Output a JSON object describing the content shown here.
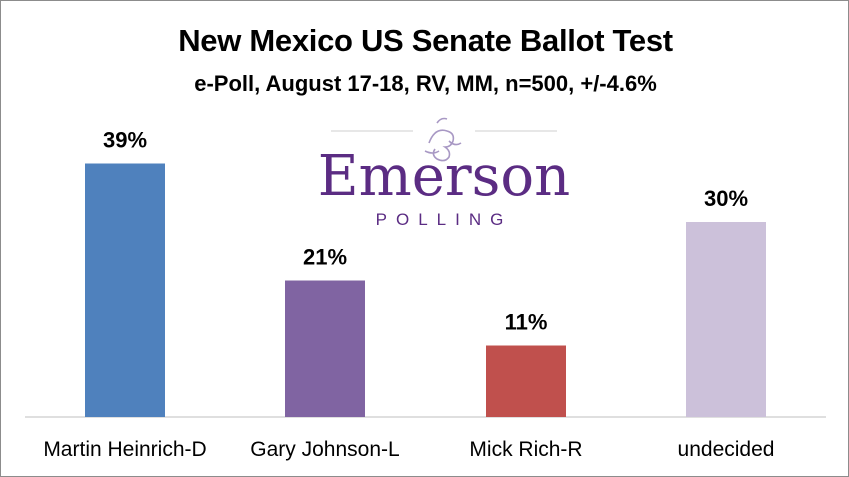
{
  "chart_data": {
    "type": "bar",
    "title": "New Mexico US Senate Ballot Test",
    "subtitle": "e-Poll, August 17-18, RV, MM, n=500, +/-4.6%",
    "categories": [
      "Martin Heinrich-D",
      "Gary Johnson-L",
      "Mick Rich-R",
      "undecided"
    ],
    "values": [
      39,
      21,
      11,
      30
    ],
    "data_labels": [
      "39%",
      "21%",
      "11%",
      "30%"
    ],
    "colors": [
      "#4f81bd",
      "#8064a2",
      "#c0504d",
      "#ccc1da"
    ],
    "ylim": [
      0,
      40
    ],
    "grid": false,
    "legend": "none"
  },
  "logo": {
    "word": "Emerson",
    "sub": "POLLING",
    "color": "#5b2c83"
  }
}
